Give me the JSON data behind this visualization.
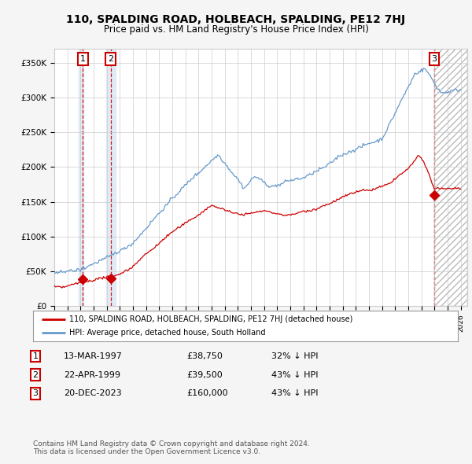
{
  "title": "110, SPALDING ROAD, HOLBEACH, SPALDING, PE12 7HJ",
  "subtitle": "Price paid vs. HM Land Registry's House Price Index (HPI)",
  "ylim": [
    0,
    370000
  ],
  "yticks": [
    0,
    50000,
    100000,
    150000,
    200000,
    250000,
    300000,
    350000
  ],
  "ytick_labels": [
    "£0",
    "£50K",
    "£100K",
    "£150K",
    "£200K",
    "£250K",
    "£300K",
    "£350K"
  ],
  "xlim_start": 1995.0,
  "xlim_end": 2026.5,
  "transactions": [
    {
      "date_num": 1997.19,
      "price": 38750,
      "label": "1"
    },
    {
      "date_num": 1999.31,
      "price": 39500,
      "label": "2"
    },
    {
      "date_num": 2023.97,
      "price": 160000,
      "label": "3"
    }
  ],
  "transaction_color": "#cc0000",
  "hpi_color": "#6699cc",
  "legend_property": "110, SPALDING ROAD, HOLBEACH, SPALDING, PE12 7HJ (detached house)",
  "legend_hpi": "HPI: Average price, detached house, South Holland",
  "table_rows": [
    {
      "num": "1",
      "date": "13-MAR-1997",
      "price": "£38,750",
      "hpi": "32% ↓ HPI"
    },
    {
      "num": "2",
      "date": "22-APR-1999",
      "price": "£39,500",
      "hpi": "43% ↓ HPI"
    },
    {
      "num": "3",
      "date": "20-DEC-2023",
      "price": "£160,000",
      "hpi": "43% ↓ HPI"
    }
  ],
  "footnote": "Contains HM Land Registry data © Crown copyright and database right 2024.\nThis data is licensed under the Open Government Licence v3.0.",
  "background_color": "#f5f5f5",
  "plot_bg_color": "#ffffff",
  "grid_color": "#cccccc",
  "shade_color_1": "#dce8f5",
  "shade_color_3": "#e8e8e8"
}
